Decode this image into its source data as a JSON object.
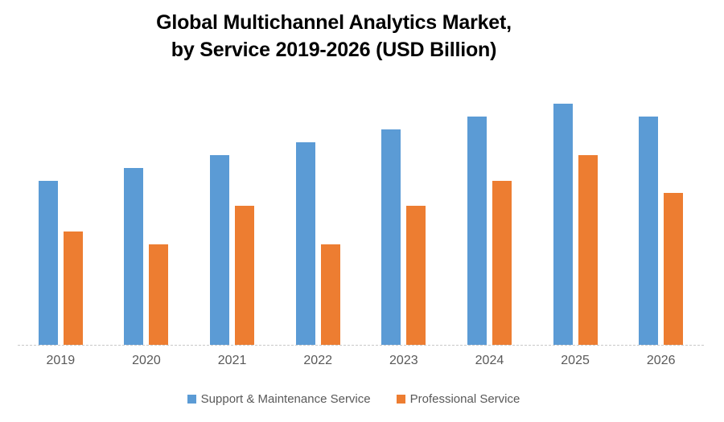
{
  "title": {
    "line1": "Global Multichannel Analytics Market,",
    "line2": "by Service 2019-2026 (USD Billion)"
  },
  "chart_data": {
    "type": "bar",
    "title": "Global Multichannel Analytics Market, by Service 2019-2026 (USD Billion)",
    "categories": [
      "2019",
      "2020",
      "2021",
      "2022",
      "2023",
      "2024",
      "2025",
      "2026"
    ],
    "series": [
      {
        "id": "support-maintenance",
        "name": "Support & Maintenance Service",
        "color": "#5B9BD5",
        "values": [
          68,
          73.3,
          78.7,
          84,
          89.3,
          94.7,
          100,
          94.7
        ]
      },
      {
        "id": "professional",
        "name": "Professional Service",
        "color": "#ED7D31",
        "values": [
          47,
          41.7,
          57.7,
          41.7,
          57.7,
          68,
          78.7,
          63
        ]
      }
    ],
    "xlabel": "",
    "ylabel": "",
    "ylim": [
      0,
      100
    ],
    "units": "USD Billion (relative heights; chart displays no numeric value axis)",
    "grid": false,
    "value_axis_visible": false,
    "legend_position": "bottom"
  },
  "colors": {
    "background": "#FFFFFF",
    "title_text": "#000000",
    "axis_label_text": "#595959",
    "legend_text": "#595959",
    "axis_line": "#C9C9C9",
    "series_blue": "#5B9BD5",
    "series_orange": "#ED7D31"
  }
}
